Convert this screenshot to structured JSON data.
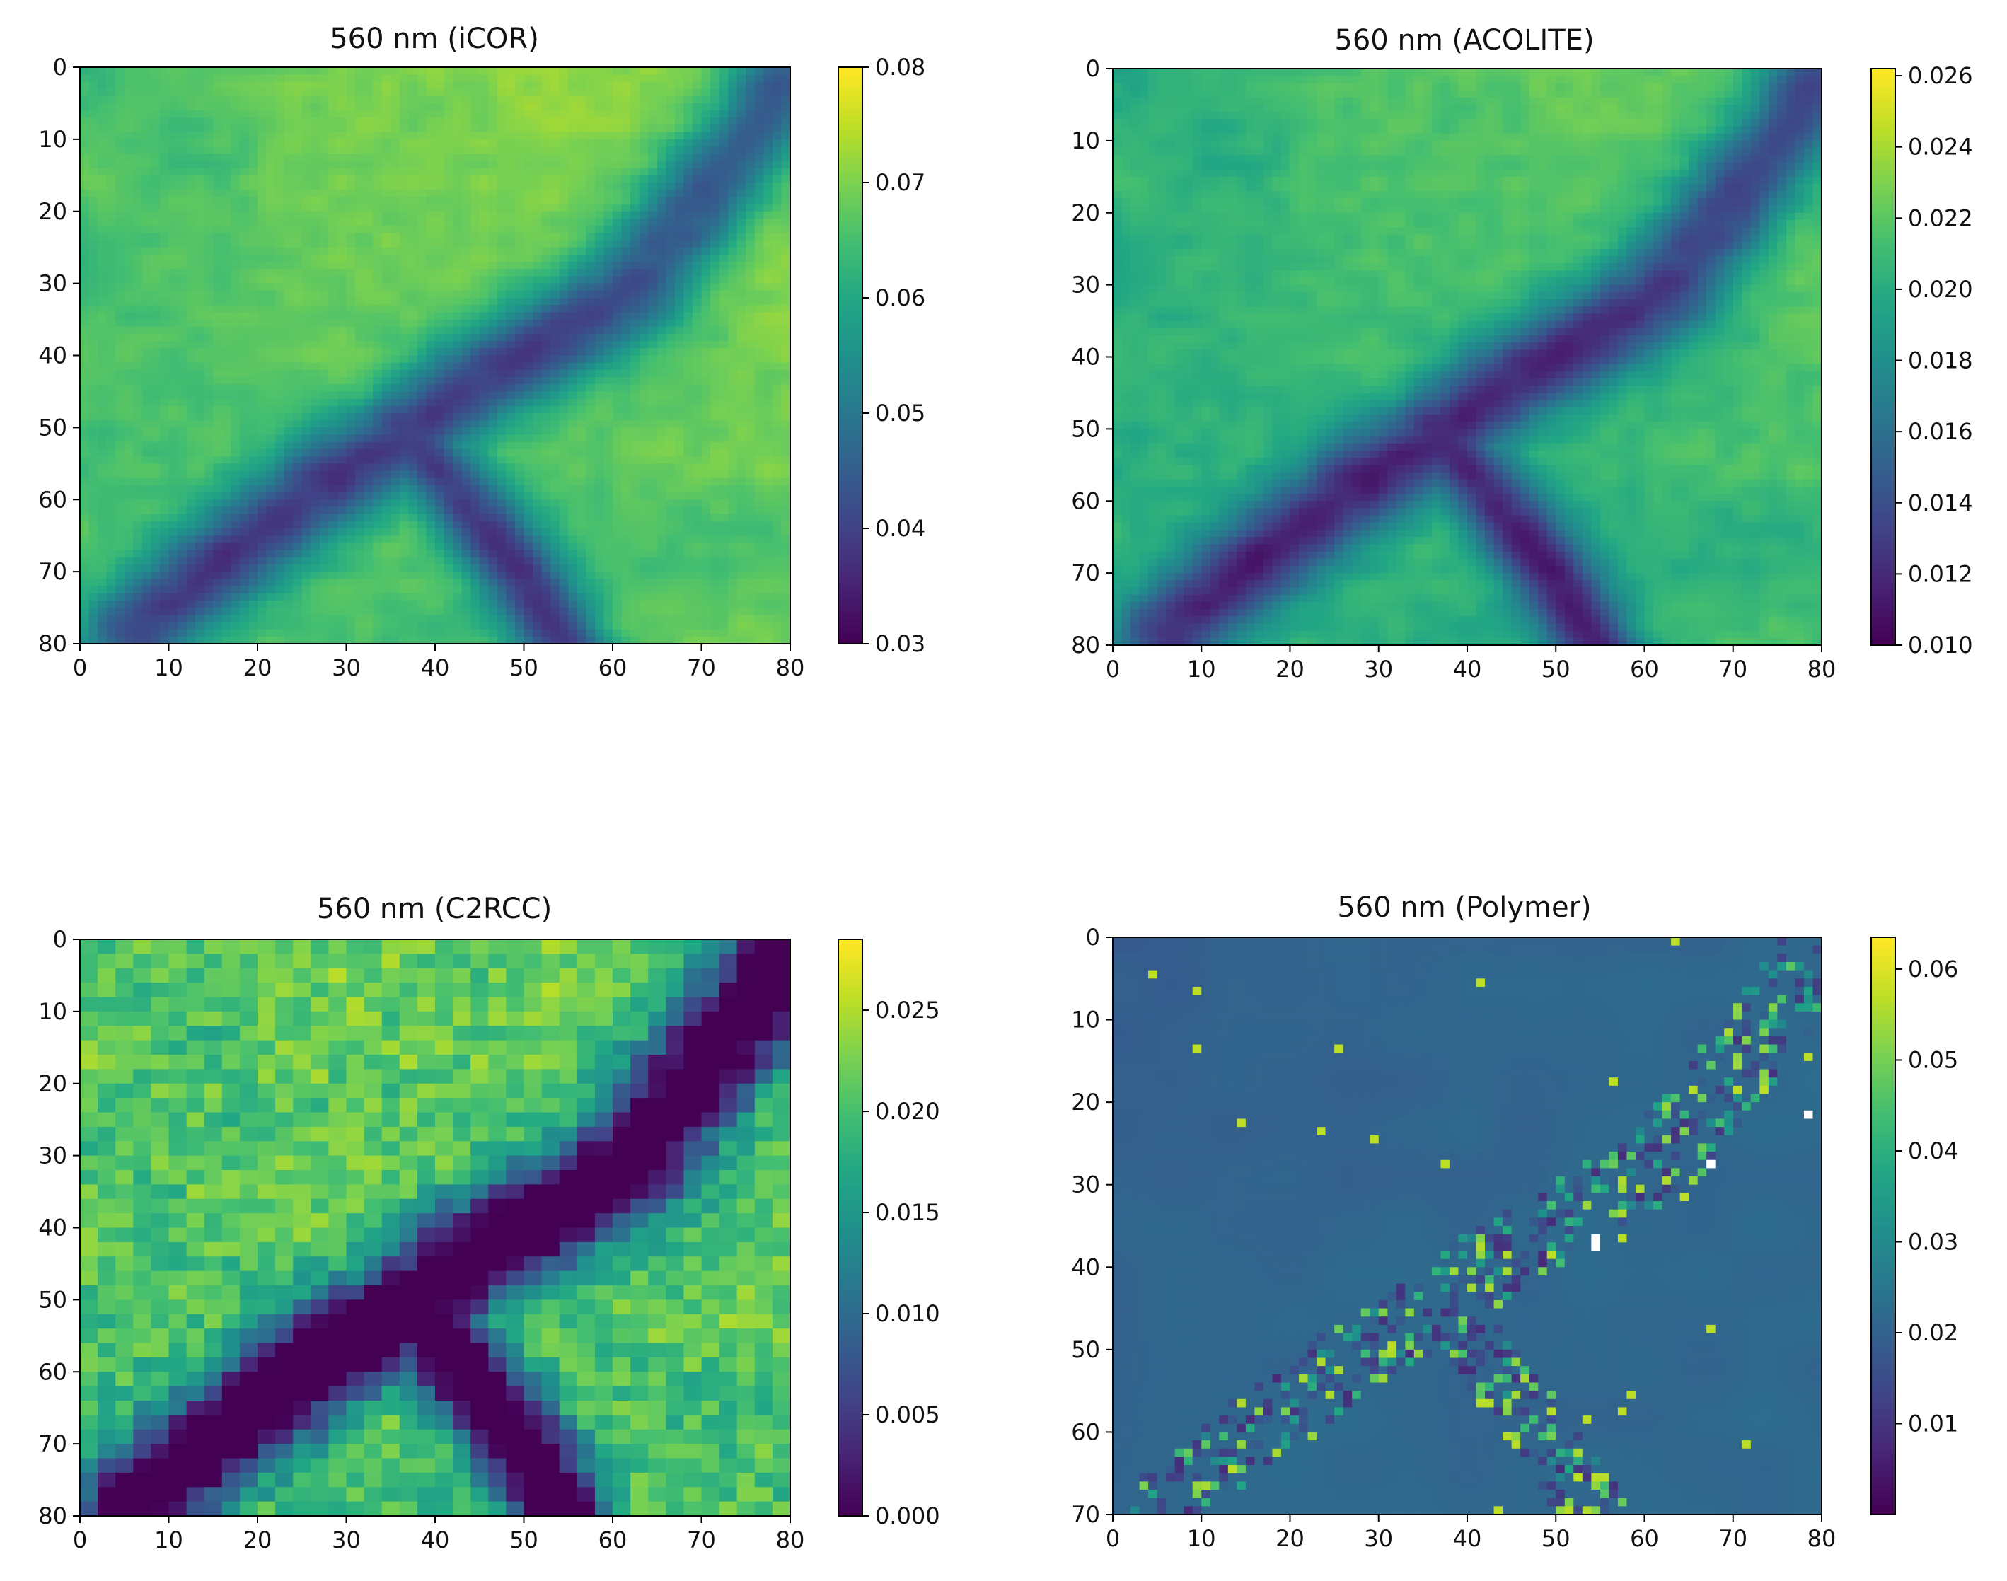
{
  "chart_data": [
    {
      "type": "heatmap",
      "title": "560 nm (iCOR)",
      "xlabel": "",
      "ylabel": "",
      "x_ticks": [
        0,
        10,
        20,
        30,
        40,
        50,
        60,
        70,
        80
      ],
      "y_ticks": [
        0,
        10,
        20,
        30,
        40,
        50,
        60,
        70,
        80
      ],
      "xlim": [
        0,
        80
      ],
      "ylim": [
        0,
        80
      ],
      "y_axis_inverted": true,
      "grid_size": [
        80,
        80
      ],
      "colormap": "viridis",
      "colorbar": {
        "range": [
          0.03,
          0.08
        ],
        "ticks": [
          "0.08",
          "0.07",
          "0.06",
          "0.05",
          "0.04",
          "0.03"
        ]
      },
      "value_range_estimated": {
        "background": 0.068,
        "channel_min": 0.03,
        "max": 0.078
      },
      "pattern": "diagonal dark channel from lower-left to upper-right"
    },
    {
      "type": "heatmap",
      "title": "560 nm (ACOLITE)",
      "xlabel": "",
      "ylabel": "",
      "x_ticks": [
        0,
        10,
        20,
        30,
        40,
        50,
        60,
        70,
        80
      ],
      "y_ticks": [
        0,
        10,
        20,
        30,
        40,
        50,
        60,
        70,
        80
      ],
      "xlim": [
        0,
        80
      ],
      "ylim": [
        0,
        80
      ],
      "y_axis_inverted": true,
      "grid_size": [
        80,
        80
      ],
      "colormap": "viridis",
      "colorbar": {
        "range": [
          0.01,
          0.0262
        ],
        "ticks": [
          "0.026",
          "0.024",
          "0.022",
          "0.020",
          "0.018",
          "0.016",
          "0.014",
          "0.012",
          "0.010"
        ]
      },
      "value_range_estimated": {
        "background": 0.021,
        "channel_min": 0.01,
        "max": 0.026
      },
      "pattern": "diagonal dark channel from lower-left to upper-right"
    },
    {
      "type": "heatmap",
      "title": "560 nm (C2RCC)",
      "xlabel": "",
      "ylabel": "",
      "x_ticks": [
        0,
        10,
        20,
        30,
        40,
        50,
        60,
        70,
        80
      ],
      "y_ticks": [
        0,
        10,
        20,
        30,
        40,
        50,
        60,
        70,
        80
      ],
      "xlim": [
        0,
        80
      ],
      "ylim": [
        0,
        80
      ],
      "y_axis_inverted": true,
      "grid_size": [
        40,
        40
      ],
      "colormap": "viridis",
      "colorbar": {
        "range": [
          0.0,
          0.0285
        ],
        "ticks": [
          "0.025",
          "0.020",
          "0.015",
          "0.010",
          "0.005",
          "0.000"
        ]
      },
      "value_range_estimated": {
        "background": 0.021,
        "channel_min": 0.0,
        "max": 0.028
      },
      "pattern": "noisy blocks with dark channel from lower-left to upper-right"
    },
    {
      "type": "heatmap",
      "title": "560 nm (Polymer)",
      "xlabel": "",
      "ylabel": "",
      "x_ticks": [
        0,
        10,
        20,
        30,
        40,
        50,
        60,
        70,
        80
      ],
      "y_ticks": [
        0,
        10,
        20,
        30,
        40,
        50,
        60,
        70
      ],
      "xlim": [
        0,
        80
      ],
      "ylim": [
        0,
        70
      ],
      "y_axis_inverted": true,
      "grid_size": [
        80,
        70
      ],
      "colormap": "viridis",
      "colorbar": {
        "range": [
          0.0,
          0.0635
        ],
        "ticks": [
          "0.06",
          "0.05",
          "0.04",
          "0.03",
          "0.02",
          "0.01"
        ]
      },
      "value_range_estimated": {
        "background": 0.021,
        "min": 0.002,
        "max": 0.063
      },
      "pattern": "mostly uniform with scattered bright and dark pixels along the channel; a few white (no-data) pixels"
    }
  ]
}
